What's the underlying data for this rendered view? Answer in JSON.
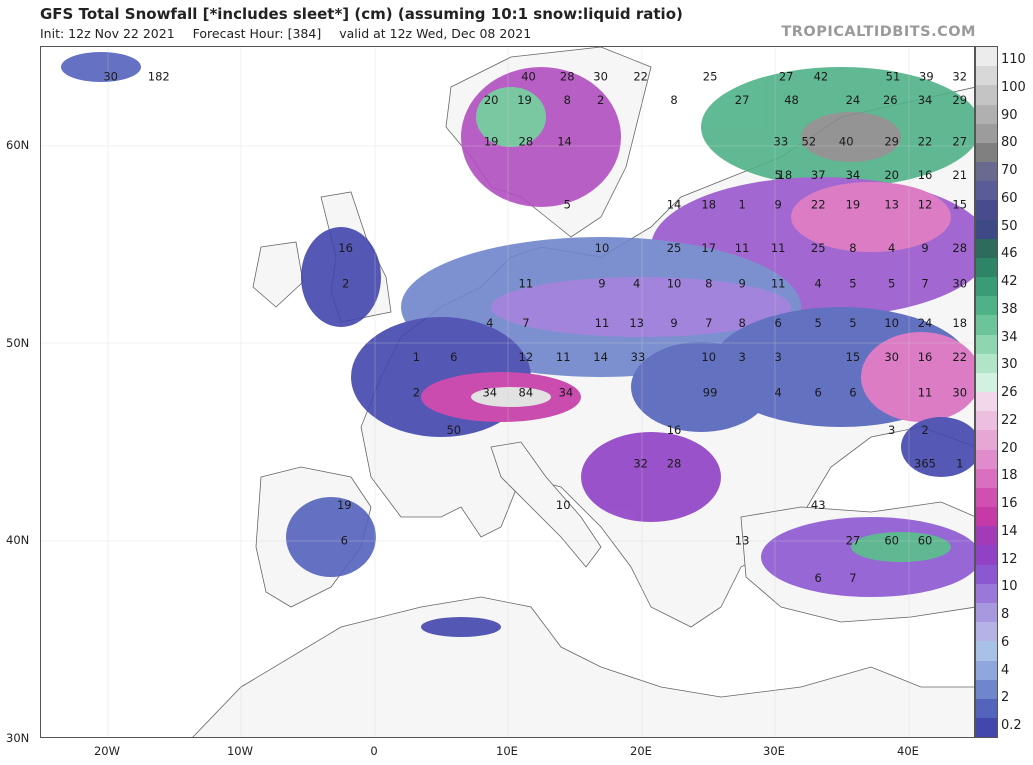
{
  "header": {
    "title": "GFS Total Snowfall [*includes sleet*] (cm) (assuming 10:1 snow:liquid ratio)",
    "init": "Init: 12z Nov 22 2021",
    "forecast_hour": "Forecast Hour: [384]",
    "valid": "valid at 12z Wed, Dec 08 2021",
    "brand": "TROPICALTIDBITS.COM"
  },
  "axes": {
    "lat_labels": [
      "60N",
      "50N",
      "40N",
      "30N"
    ],
    "lon_labels": [
      "20W",
      "10W",
      "0",
      "10E",
      "20E",
      "30E",
      "40E"
    ]
  },
  "legend": {
    "labels": [
      "110",
      "100",
      "90",
      "80",
      "70",
      "60",
      "50",
      "46",
      "42",
      "38",
      "34",
      "30",
      "26",
      "22",
      "20",
      "18",
      "16",
      "14",
      "12",
      "10",
      "8",
      "6",
      "4",
      "2",
      "0.2"
    ],
    "colors_top_to_bottom": [
      "#ececec",
      "#d8d8d8",
      "#c4c4c4",
      "#b0b0b0",
      "#9c9c9c",
      "#808080",
      "#6a6a90",
      "#5a5c98",
      "#484b8e",
      "#3d4a86",
      "#2e6a5e",
      "#2d8467",
      "#3a9c76",
      "#4fb287",
      "#6cc49a",
      "#8fd5b0",
      "#b2e4c8",
      "#d3f1e0",
      "#f3d6ea",
      "#ecbfe0",
      "#e6a6d6",
      "#e08ccc",
      "#da6fc0",
      "#d24fb2",
      "#c53aa7",
      "#a33ab8",
      "#9041c6",
      "#8c58d2",
      "#9a78da",
      "#a898e0",
      "#b5b2e6",
      "#a9c1e6",
      "#8fa7dc",
      "#6f86cc",
      "#5463bc",
      "#4346ad"
    ]
  },
  "map_labels": [
    {
      "t": "30",
      "lon": -19.8,
      "lat": 63.3
    },
    {
      "t": "182",
      "lon": -16.2,
      "lat": 63.3
    },
    {
      "t": "40",
      "lon": 11.5,
      "lat": 63.3
    },
    {
      "t": "28",
      "lon": 14.4,
      "lat": 63.3
    },
    {
      "t": "30",
      "lon": 16.9,
      "lat": 63.3
    },
    {
      "t": "22",
      "lon": 19.9,
      "lat": 63.3
    },
    {
      "t": "25",
      "lon": 25.1,
      "lat": 63.3
    },
    {
      "t": "27",
      "lon": 30.8,
      "lat": 63.3
    },
    {
      "t": "42",
      "lon": 33.4,
      "lat": 63.3
    },
    {
      "t": "51",
      "lon": 38.8,
      "lat": 63.3
    },
    {
      "t": "39",
      "lon": 41.3,
      "lat": 63.3
    },
    {
      "t": "32",
      "lon": 43.8,
      "lat": 63.3
    },
    {
      "t": "20",
      "lon": 8.7,
      "lat": 62.1
    },
    {
      "t": "19",
      "lon": 11.2,
      "lat": 62.1
    },
    {
      "t": "8",
      "lon": 14.4,
      "lat": 62.1
    },
    {
      "t": "2",
      "lon": 16.9,
      "lat": 62.1
    },
    {
      "t": "8",
      "lon": 22.4,
      "lat": 62.1
    },
    {
      "t": "27",
      "lon": 27.5,
      "lat": 62.1
    },
    {
      "t": "48",
      "lon": 31.2,
      "lat": 62.1
    },
    {
      "t": "24",
      "lon": 35.8,
      "lat": 62.1
    },
    {
      "t": "26",
      "lon": 38.6,
      "lat": 62.1
    },
    {
      "t": "34",
      "lon": 41.2,
      "lat": 62.1
    },
    {
      "t": "29",
      "lon": 43.8,
      "lat": 62.1
    },
    {
      "t": "19",
      "lon": 8.7,
      "lat": 60.0
    },
    {
      "t": "28",
      "lon": 11.3,
      "lat": 60.0
    },
    {
      "t": "14",
      "lon": 14.2,
      "lat": 60.0
    },
    {
      "t": "33",
      "lon": 30.4,
      "lat": 60.0
    },
    {
      "t": "52",
      "lon": 32.5,
      "lat": 60.0
    },
    {
      "t": "40",
      "lon": 35.3,
      "lat": 60.0
    },
    {
      "t": "29",
      "lon": 38.7,
      "lat": 60.0
    },
    {
      "t": "22",
      "lon": 41.2,
      "lat": 60.0
    },
    {
      "t": "27",
      "lon": 43.8,
      "lat": 60.0
    },
    {
      "t": "5",
      "lon": 30.2,
      "lat": 58.3
    },
    {
      "t": "18",
      "lon": 30.7,
      "lat": 58.3
    },
    {
      "t": "37",
      "lon": 33.2,
      "lat": 58.3
    },
    {
      "t": "34",
      "lon": 35.8,
      "lat": 58.3
    },
    {
      "t": "20",
      "lon": 38.7,
      "lat": 58.3
    },
    {
      "t": "16",
      "lon": 41.2,
      "lat": 58.3
    },
    {
      "t": "21",
      "lon": 43.8,
      "lat": 58.3
    },
    {
      "t": "5",
      "lon": 14.4,
      "lat": 56.8
    },
    {
      "t": "14",
      "lon": 22.4,
      "lat": 56.8
    },
    {
      "t": "18",
      "lon": 25.0,
      "lat": 56.8
    },
    {
      "t": "1",
      "lon": 27.5,
      "lat": 56.8
    },
    {
      "t": "9",
      "lon": 30.2,
      "lat": 56.8
    },
    {
      "t": "22",
      "lon": 33.2,
      "lat": 56.8
    },
    {
      "t": "19",
      "lon": 35.8,
      "lat": 56.8
    },
    {
      "t": "13",
      "lon": 38.7,
      "lat": 56.8
    },
    {
      "t": "12",
      "lon": 41.2,
      "lat": 56.8
    },
    {
      "t": "15",
      "lon": 43.8,
      "lat": 56.8
    },
    {
      "t": "16",
      "lon": -2.2,
      "lat": 54.6
    },
    {
      "t": "10",
      "lon": 17.0,
      "lat": 54.6
    },
    {
      "t": "25",
      "lon": 22.4,
      "lat": 54.6
    },
    {
      "t": "17",
      "lon": 25.0,
      "lat": 54.6
    },
    {
      "t": "11",
      "lon": 27.5,
      "lat": 54.6
    },
    {
      "t": "11",
      "lon": 30.2,
      "lat": 54.6
    },
    {
      "t": "25",
      "lon": 33.2,
      "lat": 54.6
    },
    {
      "t": "8",
      "lon": 35.8,
      "lat": 54.6
    },
    {
      "t": "4",
      "lon": 38.7,
      "lat": 54.6
    },
    {
      "t": "9",
      "lon": 41.2,
      "lat": 54.6
    },
    {
      "t": "28",
      "lon": 43.8,
      "lat": 54.6
    },
    {
      "t": "2",
      "lon": -2.2,
      "lat": 52.8
    },
    {
      "t": "11",
      "lon": 11.3,
      "lat": 52.8
    },
    {
      "t": "9",
      "lon": 17.0,
      "lat": 52.8
    },
    {
      "t": "4",
      "lon": 19.6,
      "lat": 52.8
    },
    {
      "t": "10",
      "lon": 22.4,
      "lat": 52.8
    },
    {
      "t": "8",
      "lon": 25.0,
      "lat": 52.8
    },
    {
      "t": "9",
      "lon": 27.5,
      "lat": 52.8
    },
    {
      "t": "11",
      "lon": 30.2,
      "lat": 52.8
    },
    {
      "t": "4",
      "lon": 33.2,
      "lat": 52.8
    },
    {
      "t": "5",
      "lon": 35.8,
      "lat": 52.8
    },
    {
      "t": "5",
      "lon": 38.7,
      "lat": 52.8
    },
    {
      "t": "7",
      "lon": 41.2,
      "lat": 52.8
    },
    {
      "t": "30",
      "lon": 43.8,
      "lat": 52.8
    },
    {
      "t": "4",
      "lon": 8.6,
      "lat": 50.8
    },
    {
      "t": "7",
      "lon": 11.3,
      "lat": 50.8
    },
    {
      "t": "11",
      "lon": 17.0,
      "lat": 50.8
    },
    {
      "t": "13",
      "lon": 19.6,
      "lat": 50.8
    },
    {
      "t": "9",
      "lon": 22.4,
      "lat": 50.8
    },
    {
      "t": "7",
      "lon": 25.0,
      "lat": 50.8
    },
    {
      "t": "8",
      "lon": 27.5,
      "lat": 50.8
    },
    {
      "t": "6",
      "lon": 30.2,
      "lat": 50.8
    },
    {
      "t": "5",
      "lon": 33.2,
      "lat": 50.8
    },
    {
      "t": "5",
      "lon": 35.8,
      "lat": 50.8
    },
    {
      "t": "10",
      "lon": 38.7,
      "lat": 50.8
    },
    {
      "t": "24",
      "lon": 41.2,
      "lat": 50.8
    },
    {
      "t": "18",
      "lon": 43.8,
      "lat": 50.8
    },
    {
      "t": "1",
      "lon": 3.1,
      "lat": 49.1
    },
    {
      "t": "6",
      "lon": 5.9,
      "lat": 49.1
    },
    {
      "t": "12",
      "lon": 11.3,
      "lat": 49.1
    },
    {
      "t": "11",
      "lon": 14.1,
      "lat": 49.1
    },
    {
      "t": "14",
      "lon": 16.9,
      "lat": 49.1
    },
    {
      "t": "33",
      "lon": 19.7,
      "lat": 49.1
    },
    {
      "t": "10",
      "lon": 25.0,
      "lat": 49.1
    },
    {
      "t": "3",
      "lon": 27.5,
      "lat": 49.1
    },
    {
      "t": "3",
      "lon": 30.2,
      "lat": 49.1
    },
    {
      "t": "15",
      "lon": 35.8,
      "lat": 49.1
    },
    {
      "t": "30",
      "lon": 38.7,
      "lat": 49.1
    },
    {
      "t": "16",
      "lon": 41.2,
      "lat": 49.1
    },
    {
      "t": "22",
      "lon": 43.8,
      "lat": 49.1
    },
    {
      "t": "2",
      "lon": 3.1,
      "lat": 47.3
    },
    {
      "t": "34",
      "lon": 8.6,
      "lat": 47.3
    },
    {
      "t": "84",
      "lon": 11.3,
      "lat": 47.3
    },
    {
      "t": "34",
      "lon": 14.3,
      "lat": 47.3
    },
    {
      "t": "99",
      "lon": 25.1,
      "lat": 47.3
    },
    {
      "t": "4",
      "lon": 30.2,
      "lat": 47.3
    },
    {
      "t": "6",
      "lon": 33.2,
      "lat": 47.3
    },
    {
      "t": "6",
      "lon": 35.8,
      "lat": 47.3
    },
    {
      "t": "11",
      "lon": 41.2,
      "lat": 47.3
    },
    {
      "t": "30",
      "lon": 43.8,
      "lat": 47.3
    },
    {
      "t": "50",
      "lon": 5.9,
      "lat": 45.4
    },
    {
      "t": "16",
      "lon": 22.4,
      "lat": 45.4
    },
    {
      "t": "3",
      "lon": 38.7,
      "lat": 45.4
    },
    {
      "t": "2",
      "lon": 41.2,
      "lat": 45.4
    },
    {
      "t": "32",
      "lon": 19.9,
      "lat": 43.7
    },
    {
      "t": "28",
      "lon": 22.4,
      "lat": 43.7
    },
    {
      "t": "365",
      "lon": 41.2,
      "lat": 43.7
    },
    {
      "t": "1",
      "lon": 43.8,
      "lat": 43.7
    },
    {
      "t": "19",
      "lon": -2.3,
      "lat": 41.6
    },
    {
      "t": "10",
      "lon": 14.1,
      "lat": 41.6
    },
    {
      "t": "43",
      "lon": 33.2,
      "lat": 41.6
    },
    {
      "t": "6",
      "lon": -2.3,
      "lat": 39.8
    },
    {
      "t": "13",
      "lon": 27.5,
      "lat": 39.8
    },
    {
      "t": "27",
      "lon": 35.8,
      "lat": 39.8
    },
    {
      "t": "60",
      "lon": 38.7,
      "lat": 39.8
    },
    {
      "t": "60",
      "lon": 41.2,
      "lat": 39.8
    },
    {
      "t": "6",
      "lon": 33.2,
      "lat": 37.9
    },
    {
      "t": "7",
      "lon": 35.8,
      "lat": 37.9
    }
  ]
}
